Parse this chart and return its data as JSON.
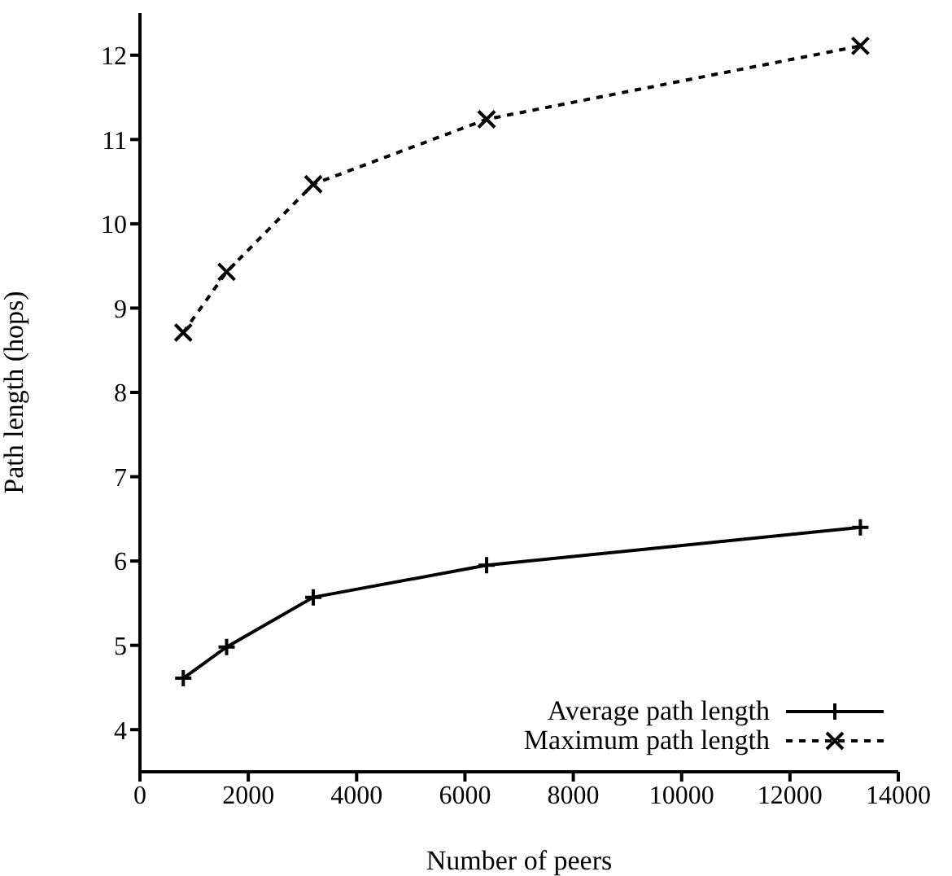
{
  "chart_data": {
    "type": "line",
    "xlabel": "Number of peers",
    "ylabel": "Path length (hops)",
    "x": [
      800,
      1600,
      3200,
      6400,
      13300
    ],
    "series": [
      {
        "name": "Average path length",
        "color": "#000000",
        "values": [
          4.61,
          4.98,
          5.57,
          5.95,
          6.4
        ],
        "marker": "plus",
        "line_style": "solid"
      },
      {
        "name": "Maximum path length",
        "color": "#000000",
        "values": [
          8.71,
          9.43,
          10.47,
          11.24,
          12.11
        ],
        "marker": "cross",
        "line_style": "dashed"
      }
    ],
    "xlim": [
      0,
      14000
    ],
    "xticks": [
      0,
      2000,
      4000,
      6000,
      8000,
      10000,
      12000,
      14000
    ],
    "ylim": [
      3.5,
      12.5
    ],
    "yticks": [
      4,
      5,
      6,
      7,
      8,
      9,
      10,
      11,
      12
    ],
    "grid": false,
    "legend": "bottom right"
  }
}
